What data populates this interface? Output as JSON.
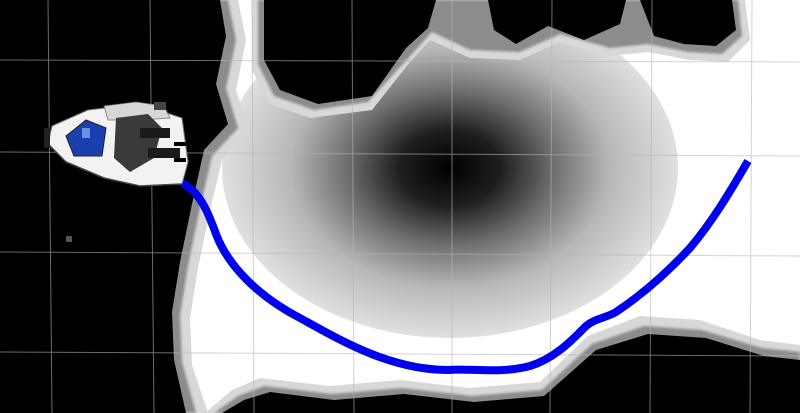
{
  "view": {
    "type": "costmap-3d-view",
    "grid": true,
    "robot_model": "robot-icon",
    "path_label": "planned-path"
  },
  "colors": {
    "background": "#ffffff",
    "obstacle": "#000000",
    "inflation_light": "#d9d9d9",
    "inflation_mid": "#8a8a8a",
    "grid_line": "#b5b5b5",
    "path": "#0000ee",
    "robot_body": "#f2f2f2",
    "robot_screen": "#1a3fb0"
  }
}
